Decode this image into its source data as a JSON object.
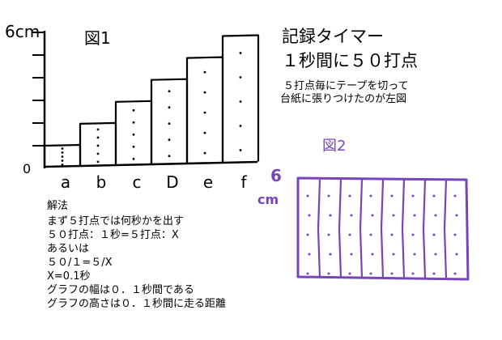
{
  "figure1": {
    "label": "図1",
    "y_unit_label": "6cm",
    "origin_label": "0",
    "categories": [
      "a",
      "b",
      "c",
      "D",
      "e",
      "f"
    ],
    "dots_per_strip": 5,
    "strip_heights_relative": [
      1,
      2,
      3,
      4,
      5,
      6
    ]
  },
  "title": {
    "line1": "記録タイマー",
    "line2": "１秒間に５０打点"
  },
  "note": {
    "line1": "５打点毎にテープを切って",
    "line2": "台紙に張りつけたのが左図"
  },
  "figure2": {
    "label": "図2",
    "unit_label_top": "6",
    "unit_label_bottom": "cm",
    "color": "#7744bb",
    "strip_count": 8,
    "dots_per_strip": 5
  },
  "solution": {
    "heading": "解法",
    "lines": [
      "まず５打点では何秒かを出す",
      "５０打点：１秒=５打点：X",
      "あるいは",
      "５０/１=５/X",
      "X=0.1秒",
      "グラフの幅は０．１秒間である",
      "グラフの高さは０．１秒間に走る距離"
    ]
  }
}
